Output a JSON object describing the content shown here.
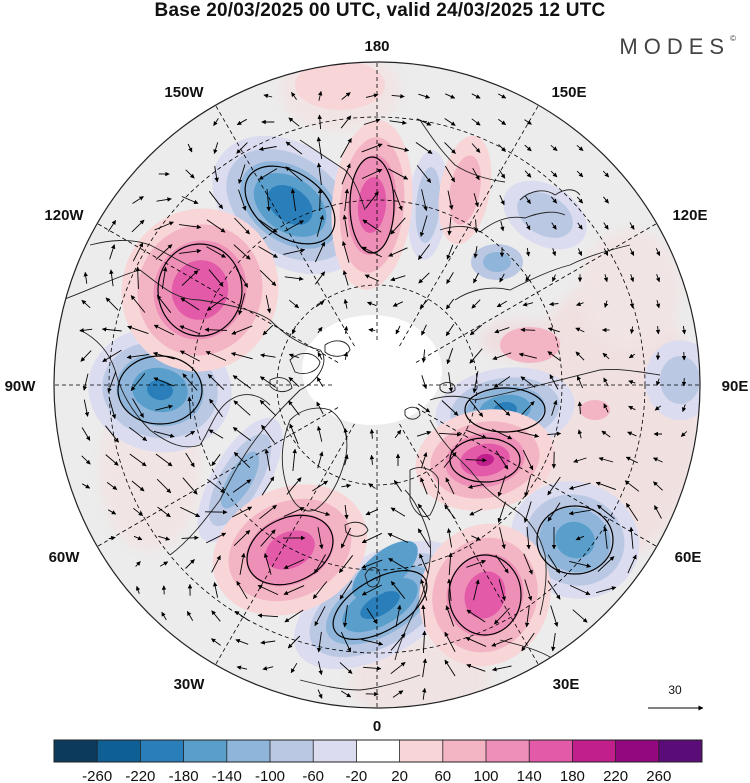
{
  "header": {
    "title": "Base 20/03/2025 00 UTC, valid 24/03/2025 12 UTC",
    "brand": "MODES",
    "brand_mark": "©"
  },
  "map": {
    "projection": "north-polar-stereographic",
    "longitude_labels": {
      "180": "180",
      "150E": "150E",
      "120E": "120E",
      "90E": "90E",
      "60E": "60E",
      "30E": "30E",
      "0": "0",
      "30W": "30W",
      "60W": "60W",
      "90W": "90W",
      "120W": "120W",
      "150W": "150W"
    },
    "reference_vector_label": "30",
    "colors": {
      "land_outline": "#222222",
      "graticule": "#000000",
      "vectors": "#000000"
    }
  },
  "colorbar": {
    "tick_labels": [
      "-260",
      "-220",
      "-180",
      "-140",
      "-100",
      "-60",
      "-20",
      "20",
      "60",
      "100",
      "140",
      "180",
      "220",
      "260"
    ],
    "colors": [
      "#0c3a5c",
      "#0e5f93",
      "#2a7fba",
      "#5a9fcb",
      "#8fb5da",
      "#bac8e3",
      "#dcdcf0",
      "#ffffff",
      "#f8d6d8",
      "#f3b4c4",
      "#ee8fb7",
      "#e25aa8",
      "#c01f8c",
      "#93087e",
      "#5a0d77"
    ]
  }
}
